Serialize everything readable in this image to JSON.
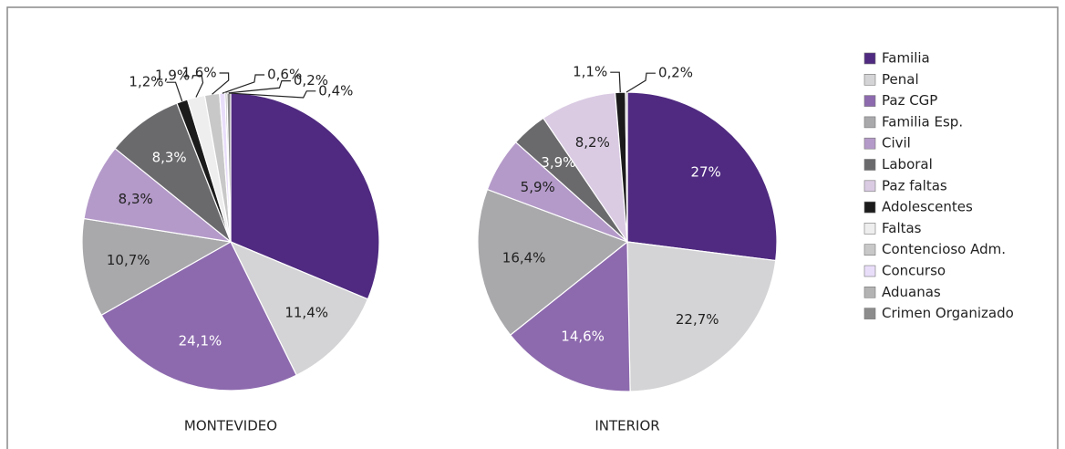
{
  "chart_data": {
    "type": "pie",
    "categories": [
      "Familia",
      "Penal",
      "Paz CGP",
      "Familia Esp.",
      "Civil",
      "Laboral",
      "Paz faltas",
      "Adolescentes",
      "Faltas",
      "Contencioso Adm.",
      "Concurso",
      "Aduanas",
      "Crimen Organizado"
    ],
    "colors": [
      "#4f2a80",
      "#d4d4d6",
      "#8d6aae",
      "#a9a9ac",
      "#b49ac9",
      "#6a6a6d",
      "#dacbe3",
      "#1b1b1b",
      "#eeeeee",
      "#c8c8c8",
      "#e9defa",
      "#b3b3b3",
      "#8c8c8c"
    ],
    "series": [
      {
        "name": "MONTEVIDEO",
        "values": [
          31.3,
          11.4,
          24.1,
          10.7,
          8.3,
          8.3,
          null,
          1.2,
          1.9,
          1.6,
          0.6,
          0.2,
          0.4
        ],
        "value_labels": [
          null,
          "11,4%",
          "24,1%",
          "10,7%",
          "8,3%",
          "8,3%",
          null,
          "1,2%",
          "1,9%",
          "1,6%",
          "0,6%",
          "0,2%",
          "0,4%"
        ]
      },
      {
        "name": "INTERIOR",
        "values": [
          27,
          22.7,
          14.6,
          16.4,
          5.9,
          3.9,
          8.2,
          1.1,
          null,
          null,
          null,
          0.2,
          null
        ],
        "value_labels": [
          "27%",
          "22,7%",
          "14,6%",
          "16,4%",
          "5,9%",
          "3,9%",
          "8,2%",
          "1,1%",
          null,
          null,
          null,
          "0,2%",
          null
        ]
      }
    ]
  }
}
